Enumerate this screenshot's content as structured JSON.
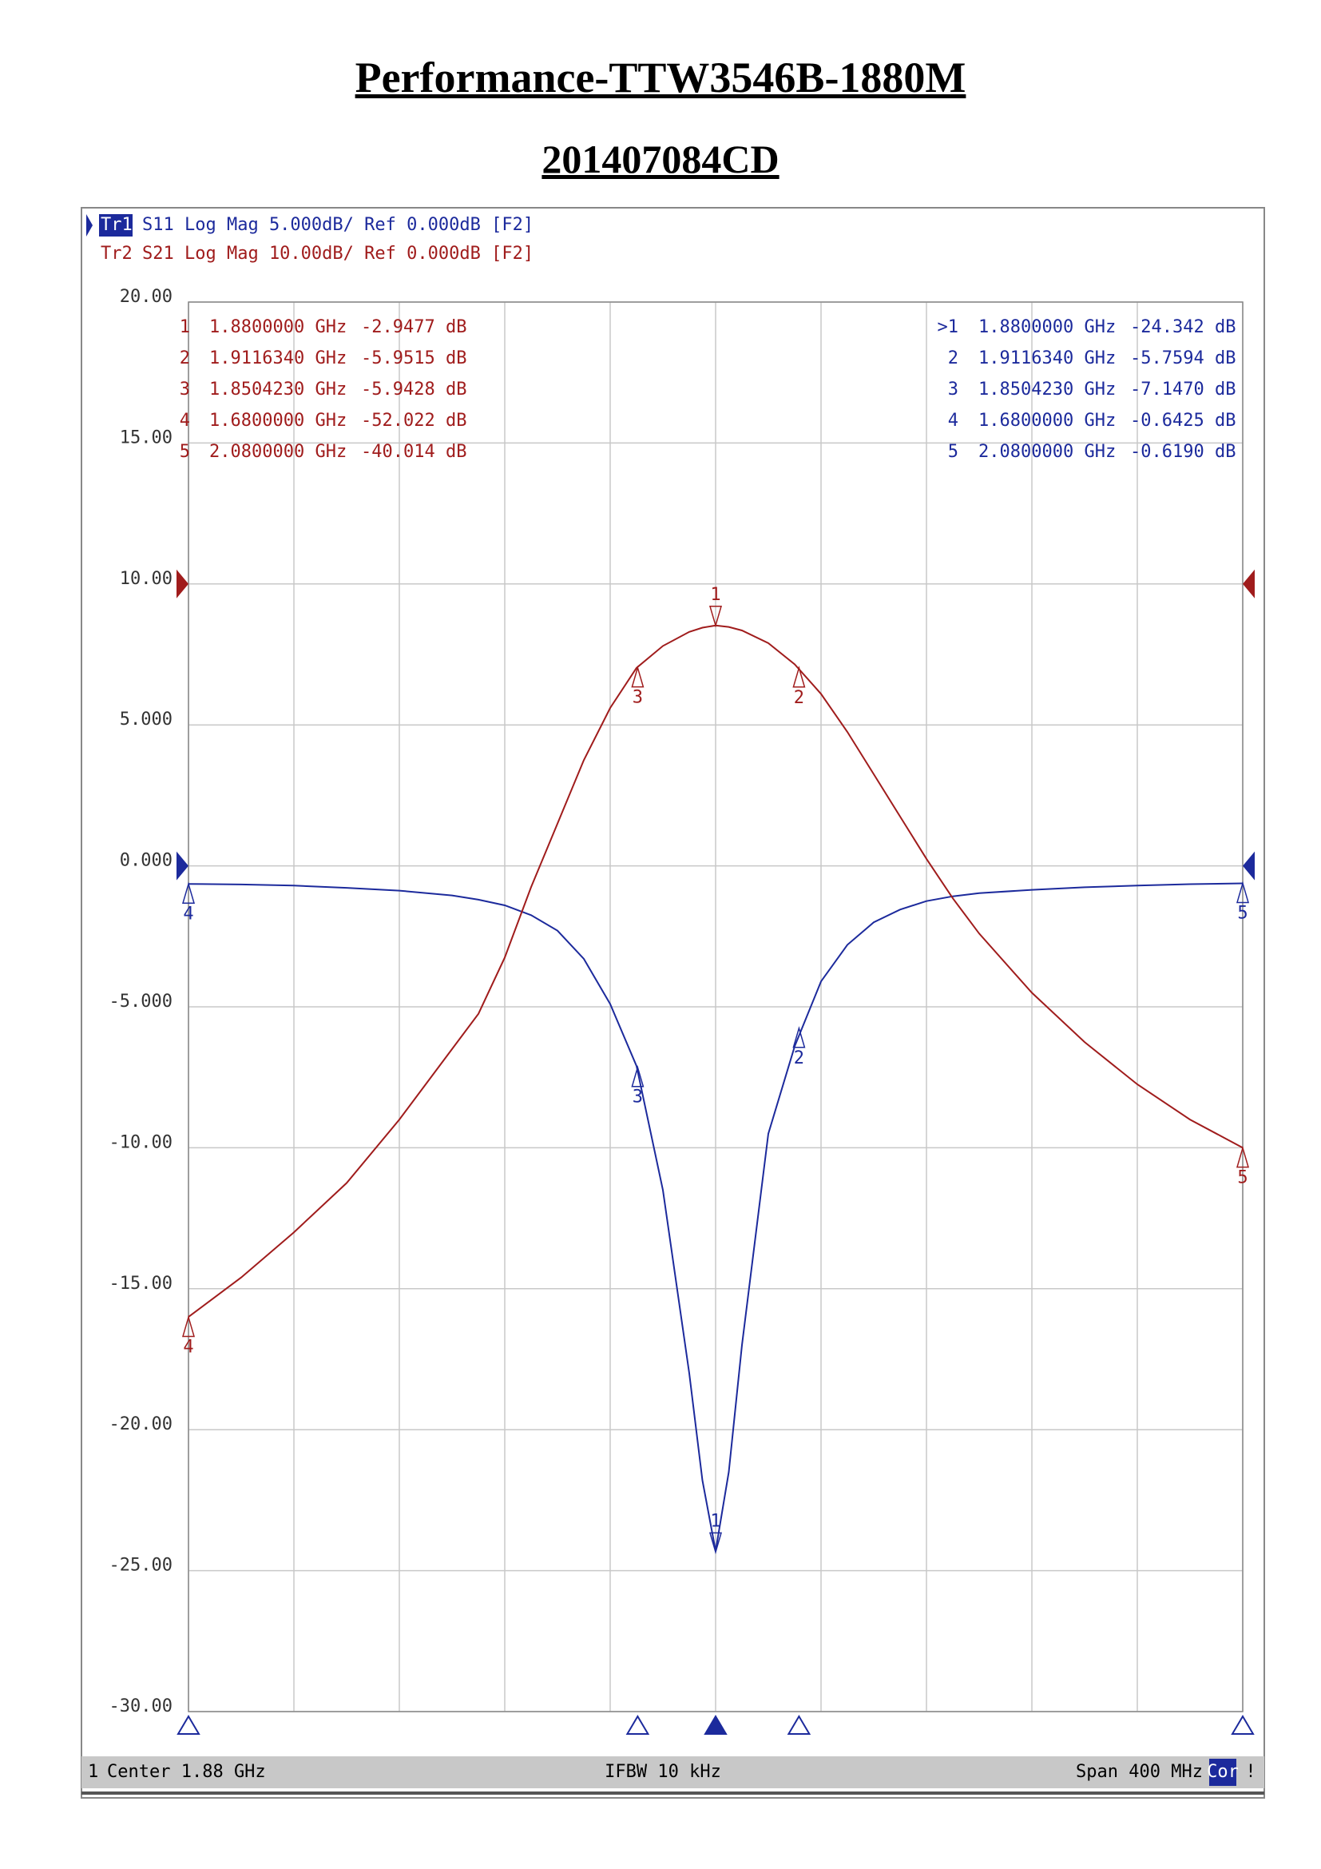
{
  "chart_data": {
    "type": "line",
    "title": "Performance-TTW3546B-1880M",
    "subtitle": "201407084CD",
    "x": [
      1.68,
      1.7,
      1.72,
      1.74,
      1.76,
      1.78,
      1.79,
      1.8,
      1.81,
      1.82,
      1.83,
      1.84,
      1.85,
      1.86,
      1.87,
      1.875,
      1.88,
      1.885,
      1.89,
      1.9,
      1.91,
      1.92,
      1.93,
      1.94,
      1.95,
      1.96,
      1.97,
      1.98,
      2.0,
      2.02,
      2.04,
      2.06,
      2.08
    ],
    "xlim": [
      1.68,
      2.08
    ],
    "xticks": [
      1.68,
      1.72,
      1.76,
      1.8,
      1.84,
      1.88,
      1.92,
      1.96,
      2.0,
      2.04,
      2.08
    ],
    "ylim": [
      -30,
      20
    ],
    "yticks": [
      {
        "value": 20,
        "label": "20.00"
      },
      {
        "value": 15,
        "label": "15.00"
      },
      {
        "value": 10,
        "label": "10.00"
      },
      {
        "value": 5,
        "label": "5.000"
      },
      {
        "value": 0,
        "label": "0.000"
      },
      {
        "value": -5,
        "label": "-5.000"
      },
      {
        "value": -10,
        "label": "-10.00"
      },
      {
        "value": -15,
        "label": "-15.00"
      },
      {
        "value": -20,
        "label": "-20.00"
      },
      {
        "value": -25,
        "label": "-25.00"
      },
      {
        "value": -30,
        "label": "-30.00"
      }
    ],
    "y2lim": [
      -80,
      20
    ],
    "grid": true,
    "series": [
      {
        "trace": "Tr1",
        "name": "S11 Log Mag 5.000dB/ Ref 0.000dB [F2]",
        "color": "#1c2a9c",
        "ref_level": 0,
        "values": [
          -0.64,
          -0.66,
          -0.7,
          -0.78,
          -0.88,
          -1.05,
          -1.2,
          -1.4,
          -1.75,
          -2.3,
          -3.3,
          -4.9,
          -7.1,
          -11.5,
          -18.0,
          -21.8,
          -24.3,
          -21.5,
          -17.0,
          -9.5,
          -6.4,
          -4.1,
          -2.8,
          -2.0,
          -1.55,
          -1.25,
          -1.08,
          -0.97,
          -0.85,
          -0.76,
          -0.7,
          -0.65,
          -0.62
        ],
        "markers": [
          {
            "id": "1",
            "table_id": ">1",
            "x": 1.88,
            "freq": "1.8800000 GHz",
            "value": -24.342,
            "value_label": "-24.342 dB"
          },
          {
            "id": "2",
            "x": 1.911634,
            "freq": "1.9116340 GHz",
            "value": -5.7594,
            "value_label": "-5.7594 dB"
          },
          {
            "id": "3",
            "x": 1.850423,
            "freq": "1.8504230 GHz",
            "value": -7.147,
            "value_label": "-7.1470 dB"
          },
          {
            "id": "4",
            "x": 1.68,
            "freq": "1.6800000 GHz",
            "value": -0.6425,
            "value_label": "-0.6425 dB"
          },
          {
            "id": "5",
            "x": 2.08,
            "freq": "2.0800000 GHz",
            "value": -0.619,
            "value_label": "-0.6190 dB"
          }
        ]
      },
      {
        "trace": "Tr2",
        "name": "S21 Log Mag 10.00dB/ Ref 0.000dB [F2]",
        "color": "#a01c1c",
        "axis": "y2",
        "ref_level": 0,
        "values": [
          -52.0,
          -49.2,
          -46.0,
          -42.5,
          -38.0,
          -33.0,
          -30.5,
          -26.5,
          -21.5,
          -17.0,
          -12.5,
          -8.8,
          -5.95,
          -4.4,
          -3.4,
          -3.1,
          -2.95,
          -3.05,
          -3.3,
          -4.2,
          -5.7,
          -7.8,
          -10.5,
          -13.5,
          -16.5,
          -19.5,
          -22.3,
          -24.8,
          -29.0,
          -32.5,
          -35.5,
          -38.0,
          -40.0
        ],
        "markers": [
          {
            "id": "1",
            "x": 1.88,
            "freq": "1.8800000 GHz",
            "value": -2.9477,
            "value_label": "-2.9477 dB"
          },
          {
            "id": "2",
            "x": 1.911634,
            "freq": "1.9116340 GHz",
            "value": -5.9515,
            "value_label": "-5.9515 dB"
          },
          {
            "id": "3",
            "x": 1.850423,
            "freq": "1.8504230 GHz",
            "value": -5.9428,
            "value_label": "-5.9428 dB"
          },
          {
            "id": "4",
            "x": 1.68,
            "freq": "1.6800000 GHz",
            "value": -52.022,
            "value_label": "-52.022 dB"
          },
          {
            "id": "5",
            "x": 2.08,
            "freq": "2.0800000 GHz",
            "value": -40.014,
            "value_label": "-40.014 dB"
          }
        ]
      }
    ],
    "footer": {
      "channel": "1",
      "center": "Center 1.88 GHz",
      "ifbw": "IFBW 10 kHz",
      "span": "Span 400 MHz",
      "correction": "Cor",
      "status": "!"
    }
  }
}
